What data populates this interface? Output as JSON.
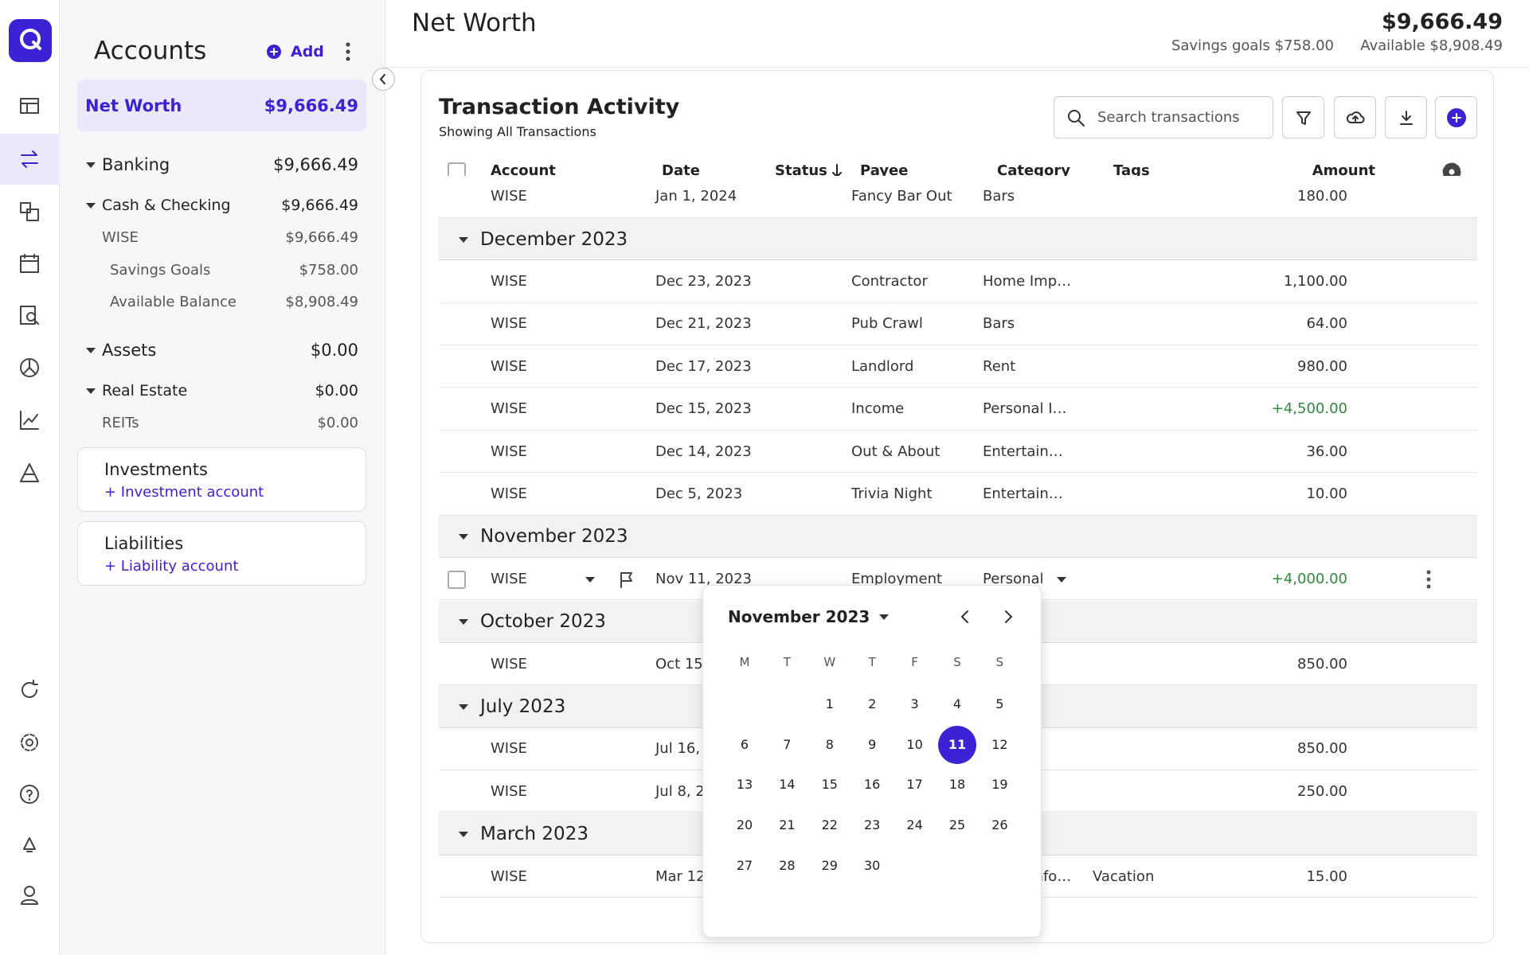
{
  "header": {
    "title": "Net Worth",
    "total": "$9,666.49",
    "savings_goals": "Savings goals $758.00",
    "available": "Available $8,908.49"
  },
  "sidebar": {
    "title": "Accounts",
    "add": "Add",
    "net_worth": {
      "label": "Net Worth",
      "value": "$9,666.49"
    },
    "groups": [
      {
        "name": "Banking",
        "value": "$9,666.49",
        "subgroups": [
          {
            "name": "Cash & Checking",
            "value": "$9,666.49",
            "accounts": [
              {
                "name": "WISE",
                "value": "$9,666.49",
                "details": [
                  {
                    "name": "Savings Goals",
                    "value": "$758.00"
                  },
                  {
                    "name": "Available Balance",
                    "value": "$8,908.49"
                  }
                ]
              }
            ]
          }
        ]
      },
      {
        "name": "Assets",
        "value": "$0.00",
        "subgroups": [
          {
            "name": "Real Estate",
            "value": "$0.00",
            "accounts": [
              {
                "name": "REITs",
                "value": "$0.00"
              }
            ]
          }
        ]
      }
    ],
    "cards": [
      {
        "title": "Investments",
        "link": "+ Investment account"
      },
      {
        "title": "Liabilities",
        "link": "+ Liability account"
      }
    ]
  },
  "transactions": {
    "title": "Transaction Activity",
    "subtitle": "Showing All Transactions",
    "search_placeholder": "Search transactions",
    "columns": {
      "account": "Account",
      "date": "Date",
      "status": "Status",
      "payee": "Payee",
      "category": "Category",
      "tags": "Tags",
      "amount": "Amount"
    },
    "groups": [
      {
        "rows": [
          {
            "account": "WISE",
            "date": "Jan 1, 2024",
            "payee": "Fancy Bar Out",
            "category": "Bars",
            "amount": "180.00"
          }
        ]
      },
      {
        "month": "December 2023",
        "rows": [
          {
            "account": "WISE",
            "date": "Dec 23, 2023",
            "payee": "Contractor",
            "category": "Home Imp…",
            "amount": "1,100.00"
          },
          {
            "account": "WISE",
            "date": "Dec 21, 2023",
            "payee": "Pub Crawl",
            "category": "Bars",
            "amount": "64.00"
          },
          {
            "account": "WISE",
            "date": "Dec 17, 2023",
            "payee": "Landlord",
            "category": "Rent",
            "amount": "980.00"
          },
          {
            "account": "WISE",
            "date": "Dec 15, 2023",
            "payee": "Income",
            "category": "Personal I…",
            "amount": "+4,500.00"
          },
          {
            "account": "WISE",
            "date": "Dec 14, 2023",
            "payee": "Out & About",
            "category": "Entertain…",
            "amount": "36.00"
          },
          {
            "account": "WISE",
            "date": "Dec 5, 2023",
            "payee": "Trivia Night",
            "category": "Entertain…",
            "amount": "10.00"
          }
        ]
      },
      {
        "month": "November 2023",
        "rows": [
          {
            "account": "WISE",
            "date": "Nov 11, 2023",
            "payee": "Employment",
            "category": "Personal",
            "amount": "+4,000.00",
            "editing": true
          }
        ]
      },
      {
        "month": "October 2023",
        "rows": [
          {
            "account": "WISE",
            "date": "Oct 15, 2023",
            "amount": "850.00"
          }
        ]
      },
      {
        "month": "July 2023",
        "rows": [
          {
            "account": "WISE",
            "date": "Jul 16, 2023",
            "amount": "850.00"
          },
          {
            "account": "WISE",
            "date": "Jul 8, 2023",
            "amount": "250.00"
          }
        ]
      },
      {
        "month": "March 2023",
        "rows": [
          {
            "account": "WISE",
            "date": "Mar 12, 2023",
            "category": "Travel Info…",
            "tags": "Vacation",
            "amount": "15.00"
          }
        ]
      }
    ]
  },
  "date_picker": {
    "month": "November 2023",
    "weekdays": [
      "M",
      "T",
      "W",
      "T",
      "F",
      "S",
      "S"
    ],
    "days": [
      1,
      2,
      3,
      4,
      5,
      6,
      7,
      8,
      9,
      10,
      11,
      12,
      13,
      14,
      15,
      16,
      17,
      18,
      19,
      20,
      21,
      22,
      23,
      24,
      25,
      26,
      27,
      28,
      29,
      30
    ],
    "selected": 11
  }
}
